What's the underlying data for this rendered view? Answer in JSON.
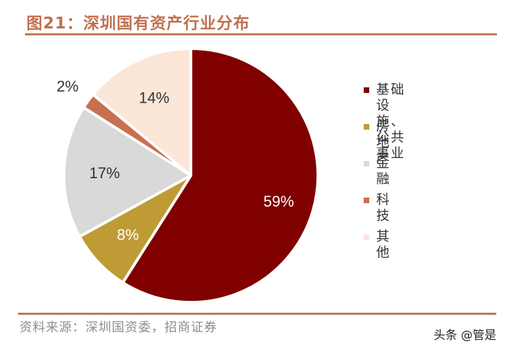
{
  "header": {
    "title": "图21：深圳国有资产行业分布"
  },
  "footer": {
    "source": "资料来源：深圳国资委，招商证券",
    "watermark": "头条 @管是"
  },
  "chart_data": {
    "type": "pie",
    "title": "图21：深圳国有资产行业分布",
    "start_angle": "12 o'clock, clockwise",
    "legend_position": "right",
    "categories": [
      "基础设施、公共事业",
      "房地产",
      "金融",
      "科技",
      "其他"
    ],
    "values": [
      59,
      8,
      17,
      2,
      14
    ],
    "labels": [
      "59%",
      "8%",
      "17%",
      "2%",
      "14%"
    ],
    "colors": [
      "#800000",
      "#bf9b36",
      "#d9d9d9",
      "#c8704f",
      "#fbe6d8"
    ]
  },
  "legend": {
    "items": [
      {
        "label": "基础设施、\n公共事业",
        "color": "#800000"
      },
      {
        "label": "房地产",
        "color": "#bf9b36"
      },
      {
        "label": "金融",
        "color": "#d9d9d9"
      },
      {
        "label": "科技",
        "color": "#c8704f"
      },
      {
        "label": "其他",
        "color": "#fbe6d8"
      }
    ]
  }
}
